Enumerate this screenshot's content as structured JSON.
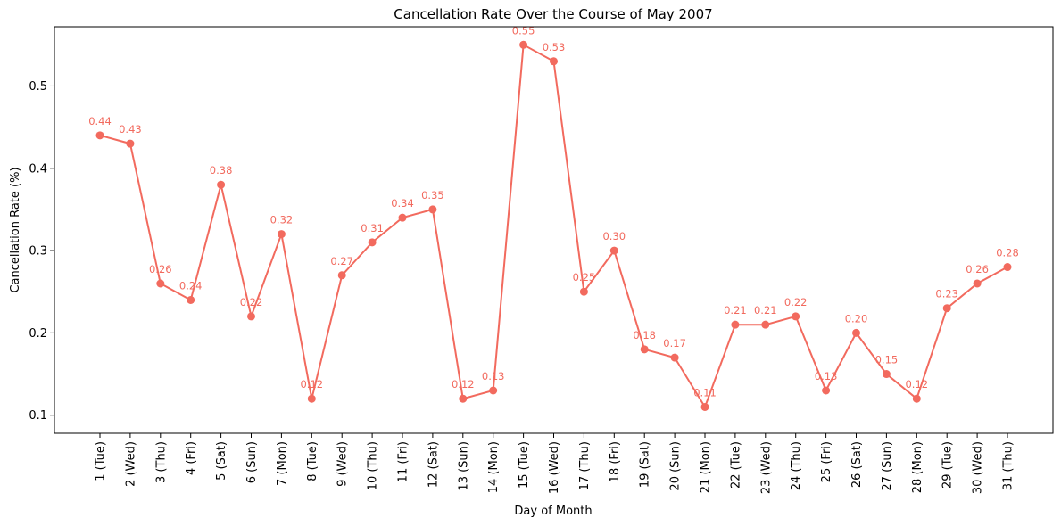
{
  "chart_data": {
    "type": "line",
    "title": "Cancellation Rate Over the Course of May 2007",
    "xlabel": "Day of Month",
    "ylabel": "Cancellation Rate (%)",
    "categories": [
      "1 (Tue)",
      "2 (Wed)",
      "3 (Thu)",
      "4 (Fri)",
      "5 (Sat)",
      "6 (Sun)",
      "7 (Mon)",
      "8 (Tue)",
      "9 (Wed)",
      "10 (Thu)",
      "11 (Fri)",
      "12 (Sat)",
      "13 (Sun)",
      "14 (Mon)",
      "15 (Tue)",
      "16 (Wed)",
      "17 (Thu)",
      "18 (Fri)",
      "19 (Sat)",
      "20 (Sun)",
      "21 (Mon)",
      "22 (Tue)",
      "23 (Wed)",
      "24 (Thu)",
      "25 (Fri)",
      "26 (Sat)",
      "27 (Sun)",
      "28 (Mon)",
      "29 (Tue)",
      "30 (Wed)",
      "31 (Thu)"
    ],
    "values": [
      0.44,
      0.43,
      0.26,
      0.24,
      0.38,
      0.22,
      0.32,
      0.12,
      0.27,
      0.31,
      0.34,
      0.35,
      0.12,
      0.13,
      0.55,
      0.53,
      0.25,
      0.3,
      0.18,
      0.17,
      0.11,
      0.21,
      0.21,
      0.22,
      0.13,
      0.2,
      0.15,
      0.12,
      0.23,
      0.26,
      0.28
    ],
    "data_labels": [
      "0.44",
      "0.43",
      "0.26",
      "0.24",
      "0.38",
      "0.22",
      "0.32",
      "0.12",
      "0.27",
      "0.31",
      "0.34",
      "0.35",
      "0.12",
      "0.13",
      "0.55",
      "0.53",
      "0.25",
      "0.30",
      "0.18",
      "0.17",
      "0.11",
      "0.21",
      "0.21",
      "0.22",
      "0.13",
      "0.20",
      "0.15",
      "0.12",
      "0.23",
      "0.26",
      "0.28"
    ],
    "yticks": [
      "0.1",
      "0.2",
      "0.3",
      "0.4",
      "0.5"
    ],
    "ylim": [
      0.078,
      0.572
    ],
    "grid": false,
    "color": "#f26a5e"
  }
}
